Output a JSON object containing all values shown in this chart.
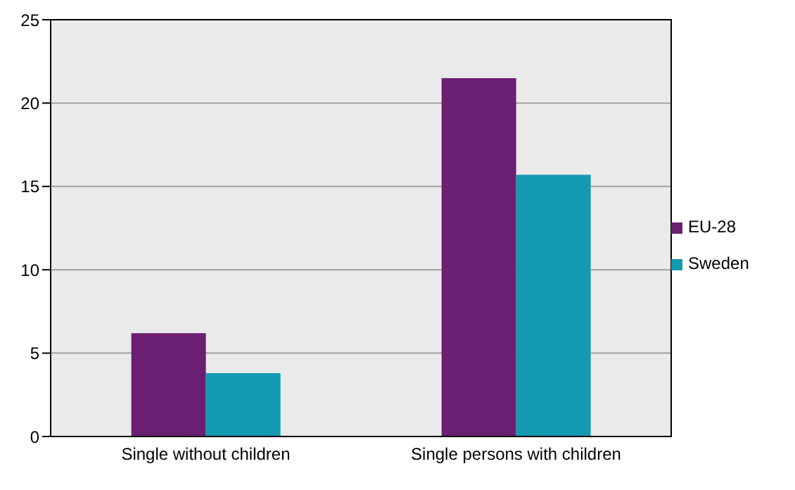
{
  "chart_data": {
    "type": "bar",
    "categories": [
      "Single without children",
      "Single persons with children"
    ],
    "series": [
      {
        "name": "EU-28",
        "color": "#6b1f72",
        "values": [
          6.2,
          21.5
        ]
      },
      {
        "name": "Sweden",
        "color": "#139ab2",
        "values": [
          3.8,
          15.7
        ]
      }
    ],
    "ylim": [
      0,
      25
    ],
    "yticks": [
      0,
      5,
      10,
      15,
      20,
      25
    ],
    "grid": "y",
    "legend": "right"
  }
}
